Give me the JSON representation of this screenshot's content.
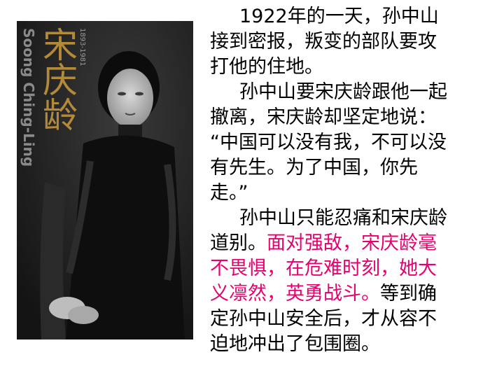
{
  "portrait": {
    "english_name": "Soong Ching-Ling",
    "chinese_name": "宋庆龄",
    "years": "1893-1981",
    "title_color": "#b3893a"
  },
  "text": {
    "highlight_color": "#e8006f",
    "lines": [
      {
        "normal": "1922年的一天，孙中山",
        "highlight": ""
      },
      {
        "normal": "接到密报，叛变的部队要攻",
        "highlight": ""
      },
      {
        "normal": "打他的住地。",
        "highlight": ""
      },
      {
        "normal": "孙中山要宋庆龄跟他一起",
        "highlight": ""
      },
      {
        "normal": "撤离，宋庆龄却坚定地说：",
        "highlight": ""
      },
      {
        "normal": "“中国可以没有我，不可以没",
        "highlight": ""
      },
      {
        "normal": "有先生。为了中国，你先",
        "highlight": ""
      },
      {
        "normal": "走。”",
        "highlight": ""
      },
      {
        "normal": "孙中山只能忍痛和宋庆龄",
        "highlight": ""
      },
      {
        "normal": "道别。",
        "highlight": "面对强敌，宋庆龄毫"
      },
      {
        "normal": "",
        "highlight": "不畏惧，在危难时刻，她大"
      },
      {
        "normal": "等到确",
        "highlight": "义凛然，英勇战斗。"
      },
      {
        "normal": "定孙中山安全后，才从容不",
        "highlight": ""
      },
      {
        "normal": "迫地冲出了包围圈。",
        "highlight": ""
      }
    ]
  }
}
